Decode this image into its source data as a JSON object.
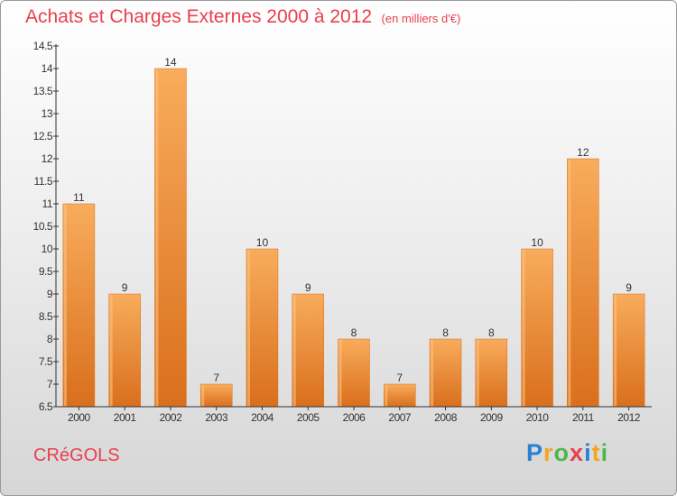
{
  "title": "Achats et Charges Externes 2000 à 2012",
  "subtitle": "(en milliers d'€)",
  "commune": "CRéGOLS",
  "brand": {
    "letters": [
      "P",
      "r",
      "o",
      "x",
      "i",
      "t",
      "i"
    ],
    "colors": [
      "#2b7fd4",
      "#f4a521",
      "#4cb848",
      "#e8404e",
      "#2b7fd4",
      "#f4a521",
      "#4cb848"
    ]
  },
  "colors": {
    "bar": "#f0913a",
    "bar_light": "#f8ac5c",
    "bar_dark": "#d96f1c",
    "title": "#e8404e"
  },
  "chart_data": {
    "type": "bar",
    "categories": [
      "2000",
      "2001",
      "2002",
      "2003",
      "2004",
      "2005",
      "2006",
      "2007",
      "2008",
      "2009",
      "2010",
      "2011",
      "2012"
    ],
    "values": [
      11,
      9,
      14,
      7,
      10,
      9,
      8,
      7,
      8,
      8,
      10,
      12,
      9
    ],
    "ylim": [
      6.5,
      14.5
    ],
    "yticks": [
      "6.5",
      "7",
      "7.5",
      "8",
      "8.5",
      "9",
      "9.5",
      "10",
      "10.5",
      "11",
      "11.5",
      "12",
      "12.5",
      "13",
      "13.5",
      "14",
      "14.5"
    ],
    "grid": false,
    "legend": "none"
  }
}
